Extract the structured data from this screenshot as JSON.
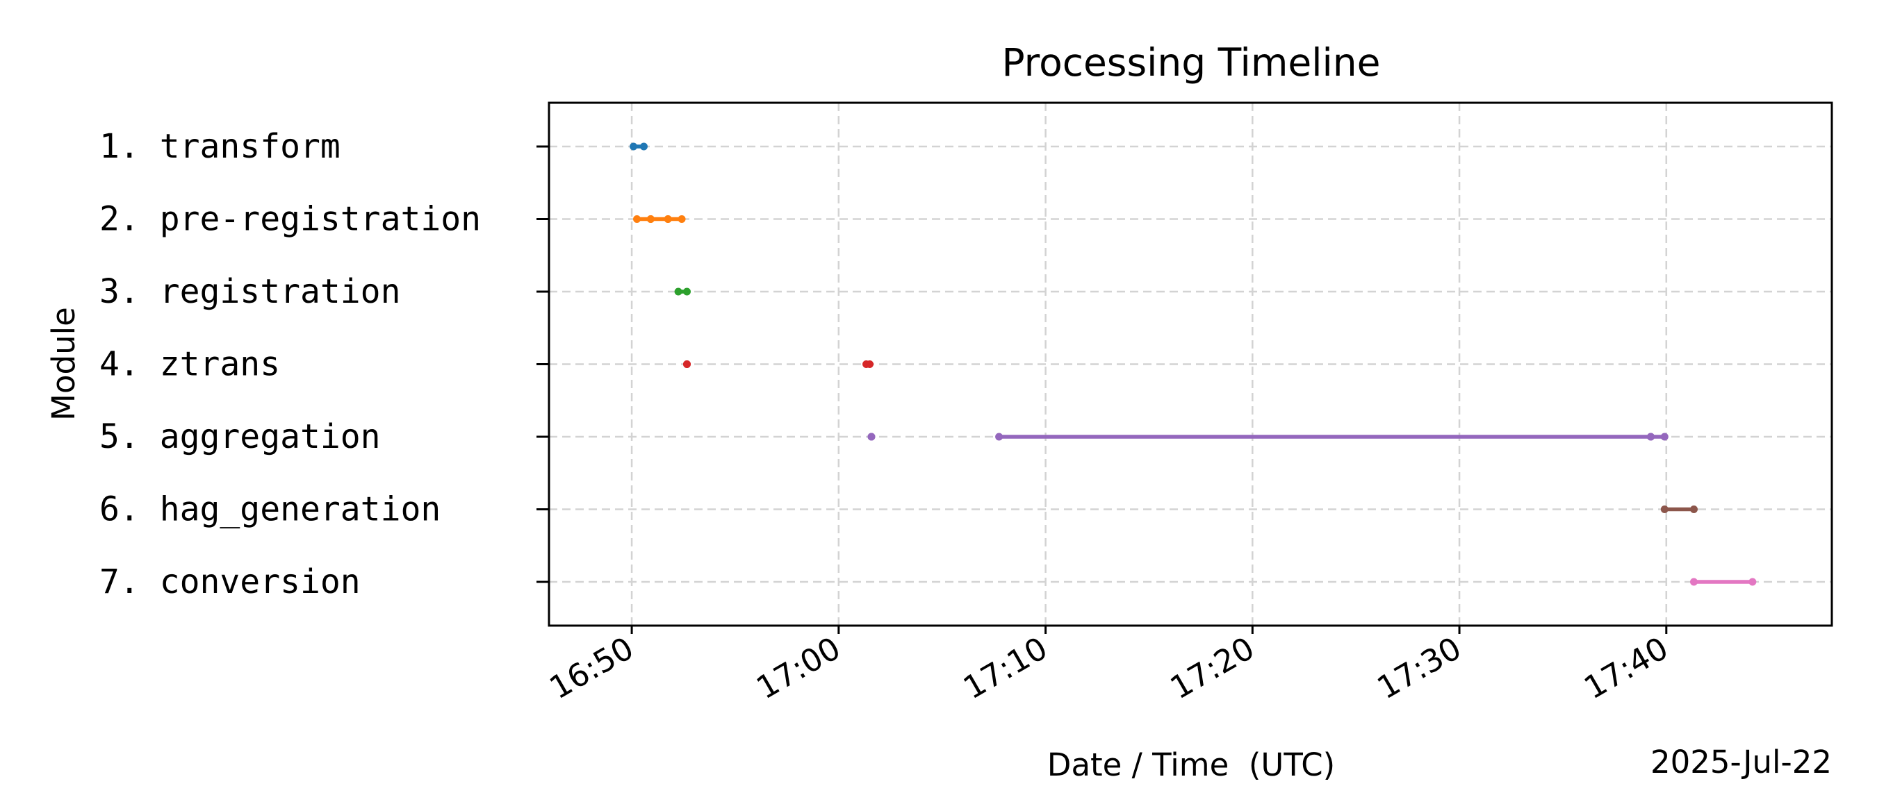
{
  "chart_data": {
    "type": "timeline",
    "title": "Processing Timeline",
    "xlabel": "Date / Time  (UTC)",
    "ylabel": "Module",
    "date_label": "2025-Jul-22",
    "x_ticks": [
      "16:50",
      "17:00",
      "17:10",
      "17:20",
      "17:30",
      "17:40"
    ],
    "xlim": [
      "16:46:00",
      "17:48:00"
    ],
    "grid": true,
    "categories": [
      "1. transform",
      "2. pre-registration",
      "3. registration",
      "4. ztrans",
      "5. aggregation",
      "6. hag_generation",
      "7. conversion"
    ],
    "series": [
      {
        "color": "#1f77b4",
        "segments": [
          [
            "16:50:05",
            "16:50:35"
          ]
        ]
      },
      {
        "color": "#ff7f0e",
        "segments": [
          [
            "16:50:15",
            "16:50:55"
          ],
          [
            "16:50:55",
            "16:51:45"
          ],
          [
            "16:51:45",
            "16:52:25"
          ]
        ]
      },
      {
        "color": "#2ca02c",
        "segments": [
          [
            "16:52:15",
            "16:52:40"
          ]
        ]
      },
      {
        "color": "#d62728",
        "segments": [
          [
            "16:52:40",
            "16:52:40"
          ],
          [
            "17:01:20",
            "17:01:30"
          ]
        ]
      },
      {
        "color": "#9467bd",
        "segments": [
          [
            "17:01:35",
            "17:01:35"
          ],
          [
            "17:07:45",
            "17:39:15"
          ],
          [
            "17:39:15",
            "17:39:55"
          ]
        ]
      },
      {
        "color": "#8c564b",
        "segments": [
          [
            "17:39:55",
            "17:41:20"
          ]
        ]
      },
      {
        "color": "#e377c2",
        "segments": [
          [
            "17:41:20",
            "17:44:10"
          ]
        ]
      }
    ]
  }
}
